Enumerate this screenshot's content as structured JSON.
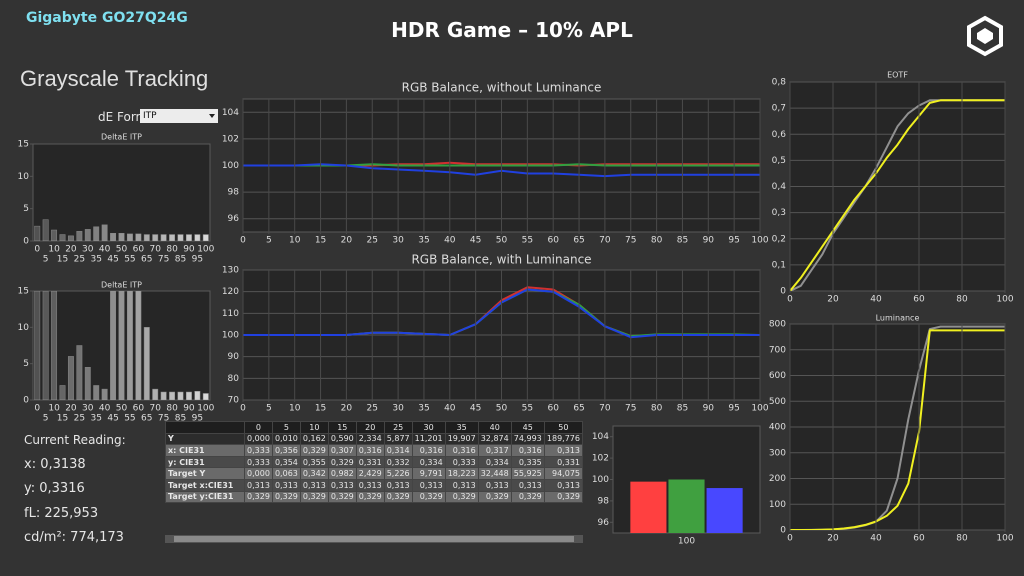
{
  "header": {
    "brand": "Gigabyte GO27Q24G",
    "title": "HDR Game – 10% APL"
  },
  "panel": {
    "heading": "Grayscale Tracking",
    "formula_label": "dE Formula:",
    "formula_value": "ITP"
  },
  "reading": {
    "title": "Current Reading:",
    "lines": [
      "x: 0,3138",
      "y: 0,3316",
      "fL: 225,953",
      "cd/m²: 774,173"
    ]
  },
  "table": {
    "header": [
      "0",
      "5",
      "10",
      "15",
      "20",
      "25",
      "30",
      "35",
      "40",
      "45",
      "50"
    ],
    "rows": [
      [
        "Y",
        "0,000",
        "0,010",
        "0,162",
        "0,590",
        "2,334",
        "5,877",
        "11,201",
        "19,907",
        "32,874",
        "74,993",
        "189,776"
      ],
      [
        "x: CIE31",
        "0,333",
        "0,356",
        "0,329",
        "0,307",
        "0,316",
        "0,314",
        "0,316",
        "0,316",
        "0,317",
        "0,316",
        "0,313"
      ],
      [
        "y: CIE31",
        "0,333",
        "0,354",
        "0,355",
        "0,329",
        "0,331",
        "0,332",
        "0,334",
        "0,333",
        "0,334",
        "0,335",
        "0,331"
      ],
      [
        "Target Y",
        "0,000",
        "0,063",
        "0,342",
        "0,982",
        "2,429",
        "5,226",
        "9,791",
        "18,223",
        "32,448",
        "55,925",
        "94,075"
      ],
      [
        "Target x:CIE31",
        "0,313",
        "0,313",
        "0,313",
        "0,313",
        "0,313",
        "0,313",
        "0,313",
        "0,313",
        "0,313",
        "0,313",
        "0,313"
      ],
      [
        "Target y:CIE31",
        "0,329",
        "0,329",
        "0,329",
        "0,329",
        "0,329",
        "0,329",
        "0,329",
        "0,329",
        "0,329",
        "0,329",
        "0,329"
      ]
    ]
  },
  "chart_data": [
    {
      "type": "bar",
      "title": "DeltaE ITP",
      "categories": [
        "0",
        "5",
        "10",
        "15",
        "20",
        "25",
        "30",
        "35",
        "40",
        "45",
        "50",
        "55",
        "60",
        "65",
        "70",
        "75",
        "80",
        "85",
        "90",
        "95",
        "100"
      ],
      "values": [
        2.3,
        3.3,
        1.7,
        1.0,
        0.8,
        1.5,
        1.8,
        2.2,
        2.5,
        1.2,
        1.2,
        1.1,
        1.1,
        1.0,
        1.0,
        1.0,
        1.0,
        1.0,
        1.0,
        1.0,
        1.0
      ],
      "color": "#d8d8d8",
      "ylim": [
        0,
        15
      ],
      "yticks": [
        0,
        5,
        10,
        15
      ]
    },
    {
      "type": "bar",
      "title": "DeltaE ITP",
      "categories": [
        "0",
        "5",
        "10",
        "15",
        "20",
        "25",
        "30",
        "35",
        "40",
        "45",
        "50",
        "55",
        "60",
        "65",
        "70",
        "75",
        "80",
        "85",
        "90",
        "95",
        "100"
      ],
      "values": [
        15,
        15,
        15,
        2,
        6,
        7.5,
        4.5,
        2,
        1.5,
        15,
        15,
        15,
        15,
        10,
        1.5,
        1.1,
        1.1,
        1.1,
        1.1,
        1.2,
        0.9
      ],
      "color": "#d8d8d8",
      "ylim": [
        0,
        15
      ],
      "yticks": [
        0,
        5,
        10,
        15
      ]
    },
    {
      "type": "line",
      "title": "RGB Balance, without Luminance",
      "x": [
        0,
        5,
        10,
        15,
        20,
        25,
        30,
        35,
        40,
        45,
        50,
        55,
        60,
        65,
        70,
        75,
        80,
        85,
        90,
        95,
        100
      ],
      "series": [
        {
          "color": "#d03030",
          "values": [
            100,
            100,
            100,
            100,
            100,
            100,
            100.1,
            100.1,
            100.2,
            100.1,
            100.1,
            100.1,
            100.1,
            100,
            100.1,
            100.1,
            100.1,
            100.1,
            100.1,
            100.1,
            100.1
          ]
        },
        {
          "color": "#30a040",
          "values": [
            100,
            100,
            100,
            100,
            100,
            100.1,
            100,
            100,
            100,
            100,
            100,
            100,
            100,
            100.1,
            100,
            100,
            100,
            100,
            100,
            100,
            100
          ]
        },
        {
          "color": "#2040e0",
          "values": [
            100,
            100,
            100,
            100.1,
            100,
            99.8,
            99.7,
            99.6,
            99.5,
            99.3,
            99.6,
            99.4,
            99.4,
            99.3,
            99.2,
            99.3,
            99.3,
            99.3,
            99.3,
            99.3,
            99.3
          ]
        }
      ],
      "xlim": [
        0,
        100
      ],
      "xticks": [
        0,
        5,
        10,
        15,
        20,
        25,
        30,
        35,
        40,
        45,
        50,
        55,
        60,
        65,
        70,
        75,
        80,
        85,
        90,
        95,
        100
      ],
      "ylim": [
        95,
        105
      ],
      "yticks": [
        96,
        98,
        100,
        102,
        104
      ],
      "grid": true
    },
    {
      "type": "line",
      "title": "RGB Balance, with Luminance",
      "x": [
        0,
        5,
        10,
        15,
        20,
        25,
        30,
        35,
        40,
        45,
        50,
        55,
        60,
        65,
        70,
        75,
        80,
        85,
        90,
        95,
        100
      ],
      "series": [
        {
          "color": "#d03030",
          "values": [
            100,
            100,
            100,
            100,
            100,
            101,
            101,
            100.5,
            100,
            105,
            116,
            122,
            121,
            114,
            104,
            99.5,
            100,
            100,
            100,
            100,
            100
          ]
        },
        {
          "color": "#30a040",
          "values": [
            100,
            100,
            100,
            100,
            100,
            101,
            101,
            100.5,
            100,
            105,
            115,
            121,
            120,
            114,
            104,
            99.5,
            100.3,
            100.3,
            100.3,
            100.3,
            100
          ]
        },
        {
          "color": "#2040e0",
          "values": [
            100,
            100,
            100,
            100,
            100,
            101,
            101,
            100.5,
            100,
            105,
            115,
            121,
            120,
            113,
            104,
            99,
            100,
            100,
            100,
            100,
            100
          ]
        }
      ],
      "xlim": [
        0,
        100
      ],
      "xticks": [
        0,
        5,
        10,
        15,
        20,
        25,
        30,
        35,
        40,
        45,
        50,
        55,
        60,
        65,
        70,
        75,
        80,
        85,
        90,
        95,
        100
      ],
      "ylim": [
        70,
        130
      ],
      "yticks": [
        70,
        80,
        90,
        100,
        110,
        120,
        130
      ],
      "grid": true
    },
    {
      "type": "bar",
      "categories": [
        "100"
      ],
      "series": [
        {
          "color": "#ff4040",
          "values": [
            99.8
          ]
        },
        {
          "color": "#40a040",
          "values": [
            100.0
          ]
        },
        {
          "color": "#4848ff",
          "values": [
            99.2
          ]
        }
      ],
      "ylim": [
        95,
        105
      ],
      "yticks": [
        96,
        98,
        100,
        102,
        104
      ]
    },
    {
      "type": "line",
      "title": "EOTF",
      "x": [
        0,
        5,
        10,
        15,
        20,
        25,
        30,
        35,
        40,
        45,
        50,
        55,
        60,
        65,
        70,
        75,
        80,
        85,
        90,
        95,
        100
      ],
      "series": [
        {
          "color": "#909090",
          "values": [
            0,
            0.02,
            0.08,
            0.14,
            0.22,
            0.28,
            0.34,
            0.4,
            0.47,
            0.55,
            0.63,
            0.68,
            0.71,
            0.73,
            0.73,
            0.73,
            0.73,
            0.73,
            0.73,
            0.73,
            0.73
          ]
        },
        {
          "color": "#f0f020",
          "values": [
            0,
            0.05,
            0.11,
            0.17,
            0.23,
            0.29,
            0.35,
            0.4,
            0.45,
            0.51,
            0.56,
            0.62,
            0.67,
            0.72,
            0.73,
            0.73,
            0.73,
            0.73,
            0.73,
            0.73,
            0.73
          ]
        }
      ],
      "xlim": [
        0,
        100
      ],
      "xticks": [
        0,
        20,
        40,
        60,
        80,
        100
      ],
      "ylim": [
        0,
        0.8
      ],
      "yticks": [
        0,
        {
          "value": 0.1,
          "label": "0,1"
        },
        {
          "value": 0.2,
          "label": "0,2"
        },
        {
          "value": 0.3,
          "label": "0,3"
        },
        {
          "value": 0.4,
          "label": "0,4"
        },
        {
          "value": 0.5,
          "label": "0,5"
        },
        {
          "value": 0.6,
          "label": "0,6"
        },
        {
          "value": 0.7,
          "label": "0,7"
        },
        {
          "value": 0.8,
          "label": "0,8"
        }
      ],
      "grid": true
    },
    {
      "type": "line",
      "title": "Luminance",
      "x": [
        0,
        5,
        10,
        15,
        20,
        25,
        30,
        35,
        40,
        45,
        50,
        55,
        60,
        65,
        70,
        75,
        80,
        85,
        90,
        95,
        100
      ],
      "series": [
        {
          "color": "#909090",
          "values": [
            0,
            0.06,
            0.34,
            0.98,
            2.4,
            5.2,
            9.8,
            18.2,
            32.4,
            75,
            200,
            430,
            620,
            780,
            790,
            790,
            790,
            790,
            790,
            790,
            790
          ]
        },
        {
          "color": "#f0f020",
          "values": [
            0,
            0.01,
            0.16,
            0.59,
            2.3,
            5.9,
            11.2,
            19.9,
            32.9,
            55,
            94,
            180,
            380,
            775,
            775,
            775,
            775,
            775,
            775,
            775,
            775
          ]
        }
      ],
      "xlim": [
        0,
        100
      ],
      "xticks": [
        0,
        20,
        40,
        60,
        80,
        100
      ],
      "ylim": [
        0,
        800
      ],
      "yticks": [
        0,
        100,
        200,
        300,
        400,
        500,
        600,
        700,
        800
      ],
      "grid": true
    }
  ]
}
